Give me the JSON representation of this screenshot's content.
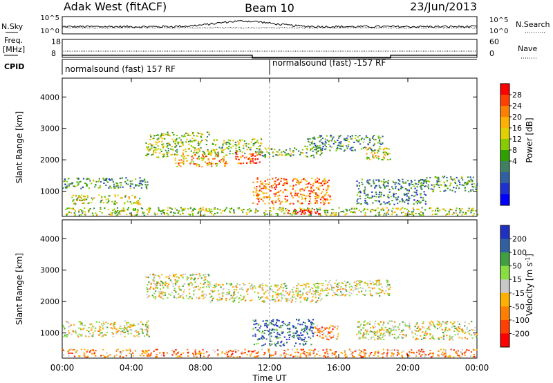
{
  "header": {
    "title": "Adak West (fitACF)",
    "beam": "Beam 10",
    "date": "23/Jun/2013"
  },
  "strips": {
    "nsky_label": "N.Sky",
    "nsearch_label": "N.Search",
    "noise_ticks": [
      "10^5",
      "10^0"
    ],
    "freq_label_1": "Freq.",
    "freq_label_2": "[MHz]",
    "freq_ticks": [
      "18",
      "8"
    ],
    "nave_label": "Nave",
    "nave_ticks": [
      "60",
      "0"
    ],
    "cpid_label": "CPID",
    "cpid_segments": [
      {
        "text": "normalsound (fast) 157 RF",
        "start_hour": 0,
        "end_hour": 12
      },
      {
        "text": "normalsound (fast) -157 RF",
        "start_hour": 12,
        "end_hour": 24
      }
    ],
    "freq_steps_hours": [
      0,
      11,
      19,
      24
    ],
    "freq_levels_mhz": [
      11.5,
      10,
      11.5
    ]
  },
  "chart_data": [
    {
      "type": "heatmap",
      "name": "Power",
      "ylabel": "Slant Range [km]",
      "xlabel": "",
      "xlim_hours": [
        0,
        24
      ],
      "ylim_km": [
        200,
        4600
      ],
      "yticks": [
        1000,
        2000,
        3000,
        4000
      ],
      "colorbar": {
        "label": "Power [dB]",
        "ticks": [
          "28",
          "24",
          "20",
          "16",
          "12",
          "8",
          "4"
        ],
        "colors": [
          "#ff0000",
          "#ff4000",
          "#ff8000",
          "#ffb000",
          "#e0d000",
          "#88cc00",
          "#30a000",
          "#408060",
          "#3060a0",
          "#2030d0",
          "#0000ff"
        ]
      },
      "bands": [
        {
          "start": 0.0,
          "end": 5.0,
          "low": 1100,
          "high": 1450,
          "level": 0.35
        },
        {
          "start": 0.5,
          "end": 4.5,
          "low": 600,
          "high": 900,
          "level": 0.55
        },
        {
          "start": 4.8,
          "end": 8.5,
          "low": 2100,
          "high": 2900,
          "level": 0.5
        },
        {
          "start": 6.5,
          "end": 9.5,
          "low": 1800,
          "high": 2200,
          "level": 0.7
        },
        {
          "start": 8.5,
          "end": 11.5,
          "low": 2200,
          "high": 2700,
          "level": 0.45
        },
        {
          "start": 10.0,
          "end": 11.5,
          "low": 1900,
          "high": 2300,
          "level": 0.85
        },
        {
          "start": 11.5,
          "end": 15.0,
          "low": 2100,
          "high": 2400,
          "level": 0.45
        },
        {
          "start": 11.0,
          "end": 15.5,
          "low": 600,
          "high": 1450,
          "level": 0.8
        },
        {
          "start": 14.0,
          "end": 18.5,
          "low": 2300,
          "high": 2800,
          "level": 0.35
        },
        {
          "start": 17.5,
          "end": 19.0,
          "low": 2000,
          "high": 2400,
          "level": 0.6
        },
        {
          "start": 17.0,
          "end": 21.0,
          "low": 600,
          "high": 1400,
          "level": 0.3
        },
        {
          "start": 21.0,
          "end": 24.0,
          "low": 1000,
          "high": 1500,
          "level": 0.35
        },
        {
          "start": 0.0,
          "end": 24.0,
          "low": 250,
          "high": 500,
          "level": 0.5
        },
        {
          "start": 13.0,
          "end": 15.0,
          "low": 250,
          "high": 450,
          "level": 1.0
        }
      ]
    },
    {
      "type": "heatmap",
      "name": "Velocity",
      "ylabel": "Slant Range [km]",
      "xlabel": "Time UT",
      "xlim_hours": [
        0,
        24
      ],
      "ylim_km": [
        200,
        4600
      ],
      "yticks": [
        1000,
        2000,
        3000,
        4000
      ],
      "xticks": [
        "00:00",
        "04:00",
        "08:00",
        "12:00",
        "16:00",
        "20:00",
        "00:00"
      ],
      "colorbar": {
        "label": "Velocity [m s^-1]",
        "ticks": [
          "200",
          "100",
          "50",
          "15",
          "-15",
          "-50",
          "-100",
          "-200"
        ],
        "colors": [
          "#2030c0",
          "#3060a0",
          "#40a040",
          "#88dd40",
          "#c8c8c8",
          "#ffb000",
          "#ff8000",
          "#ff4000",
          "#ff0000"
        ]
      },
      "bands": [
        {
          "start": 0.0,
          "end": 5.0,
          "low": 900,
          "high": 1400,
          "level": 0.5
        },
        {
          "start": 4.8,
          "end": 8.5,
          "low": 2100,
          "high": 2900,
          "level": 0.5
        },
        {
          "start": 8.5,
          "end": 15.0,
          "low": 2000,
          "high": 2600,
          "level": 0.5
        },
        {
          "start": 11.0,
          "end": 14.5,
          "low": 600,
          "high": 1450,
          "level": 0.85
        },
        {
          "start": 14.5,
          "end": 16.0,
          "low": 800,
          "high": 1300,
          "level": 0.3
        },
        {
          "start": 15.0,
          "end": 19.0,
          "low": 2200,
          "high": 2700,
          "level": 0.5
        },
        {
          "start": 17.0,
          "end": 24.0,
          "low": 800,
          "high": 1400,
          "level": 0.5
        },
        {
          "start": 0.0,
          "end": 24.0,
          "low": 250,
          "high": 500,
          "level": 0.3
        }
      ]
    }
  ],
  "colors": {
    "axis": "#000000",
    "background": "#ffffff",
    "separator": "#888888"
  }
}
